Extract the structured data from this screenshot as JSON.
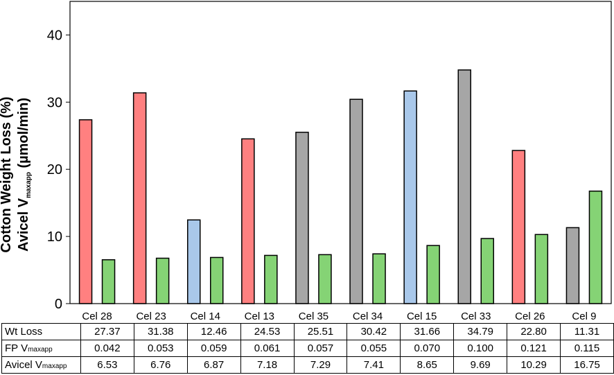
{
  "colors": {
    "red": "#ff8080",
    "blue": "#a9c8ea",
    "gray": "#a6a6a6",
    "green": "#85d375"
  },
  "chart_data": {
    "type": "bar",
    "ylabel_line1": "Cotton Weight Loss (%)",
    "ylabel_line2_main": "Avicel V",
    "ylabel_line2_sub": "maxapp",
    "ylabel_line2_unit": " (µmol/min)",
    "ylim": [
      0,
      45
    ],
    "yticks": [
      "0",
      "10",
      "20",
      "30",
      "40"
    ],
    "categories": [
      "Cel 28",
      "Cel 23",
      "Cel 14",
      "Cel 13",
      "Cel 35",
      "Cel 34",
      "Cel 15",
      "Cel 33",
      "Cel 26",
      "Cel 9"
    ],
    "series": [
      {
        "name": "Wt Loss",
        "values": [
          27.37,
          31.38,
          12.46,
          24.53,
          25.51,
          30.42,
          31.66,
          34.79,
          22.8,
          11.31
        ],
        "bar_colors": [
          "red",
          "red",
          "blue",
          "red",
          "gray",
          "gray",
          "blue",
          "gray",
          "red",
          "gray"
        ]
      },
      {
        "name": "Avicel Vmaxapp",
        "values": [
          6.53,
          6.76,
          6.87,
          7.18,
          7.29,
          7.41,
          8.65,
          9.69,
          10.29,
          16.75
        ],
        "bar_colors": [
          "green",
          "green",
          "green",
          "green",
          "green",
          "green",
          "green",
          "green",
          "green",
          "green"
        ]
      }
    ],
    "grid": false,
    "table": {
      "rows": [
        {
          "label_main": "Wt Loss",
          "label_sub": "",
          "cells": [
            "27.37",
            "31.38",
            "12.46",
            "24.53",
            "25.51",
            "30.42",
            "31.66",
            "34.79",
            "22.80",
            "11.31"
          ]
        },
        {
          "label_main": "FP V",
          "label_sub": "maxapp",
          "cells": [
            "0.042",
            "0.053",
            "0.059",
            "0.061",
            "0.057",
            "0.055",
            "0.070",
            "0.100",
            "0.121",
            "0.115"
          ]
        },
        {
          "label_main": "Avicel V",
          "label_sub": "maxapp",
          "cells": [
            "6.53",
            "6.76",
            "6.87",
            "7.18",
            "7.29",
            "7.41",
            "8.65",
            "9.69",
            "10.29",
            "16.75"
          ]
        }
      ]
    }
  }
}
